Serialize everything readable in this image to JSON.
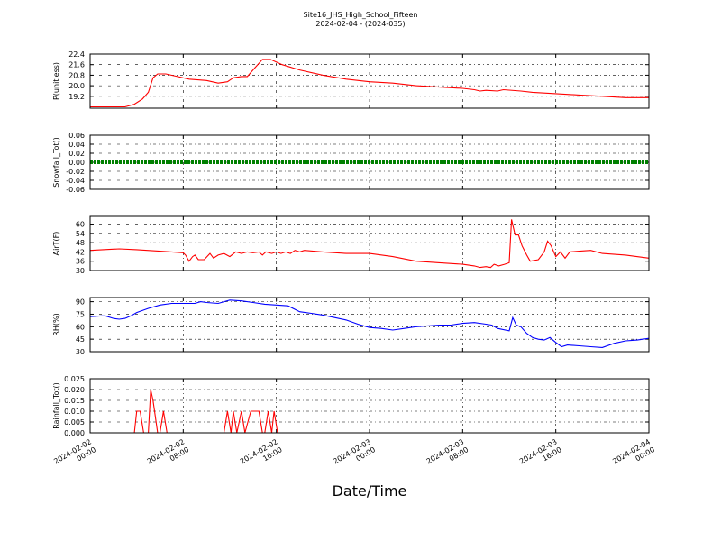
{
  "title": "Site16_JHS_High_School_Fifteen",
  "subtitle": "2024-02-04 - (2024-035)",
  "xlabel": "Date/Time",
  "x_ticks": [
    {
      "t": 0,
      "line1": "2024-02-02",
      "line2": "00:00"
    },
    {
      "t": 8,
      "line1": "2024-02-02",
      "line2": "08:00"
    },
    {
      "t": 16,
      "line1": "2024-02-02",
      "line2": "16:00"
    },
    {
      "t": 24,
      "line1": "2024-02-03",
      "line2": "00:00"
    },
    {
      "t": 32,
      "line1": "2024-02-03",
      "line2": "08:00"
    },
    {
      "t": 40,
      "line1": "2024-02-03",
      "line2": "16:00"
    },
    {
      "t": 48,
      "line1": "2024-02-04",
      "line2": "00:00"
    }
  ],
  "chart_data": [
    {
      "type": "line",
      "ylabel": "P(unitless)",
      "color": "#ff0000",
      "ylim": [
        18.3,
        22.4
      ],
      "yticks": [
        "19.2",
        "20.0",
        "20.8",
        "21.6",
        "22.4"
      ],
      "points": [
        [
          0,
          18.4
        ],
        [
          3,
          18.4
        ],
        [
          3.8,
          18.6
        ],
        [
          4.5,
          19.0
        ],
        [
          5,
          19.5
        ],
        [
          5.4,
          20.6
        ],
        [
          5.8,
          20.9
        ],
        [
          6.5,
          20.9
        ],
        [
          7.5,
          20.7
        ],
        [
          8.5,
          20.5
        ],
        [
          10,
          20.4
        ],
        [
          11,
          20.2
        ],
        [
          11.8,
          20.3
        ],
        [
          12.3,
          20.6
        ],
        [
          13,
          20.7
        ],
        [
          13.5,
          20.7
        ],
        [
          14.2,
          21.4
        ],
        [
          14.8,
          22.0
        ],
        [
          15.5,
          22.0
        ],
        [
          16.5,
          21.6
        ],
        [
          18,
          21.2
        ],
        [
          20,
          20.8
        ],
        [
          22,
          20.5
        ],
        [
          24,
          20.3
        ],
        [
          26,
          20.2
        ],
        [
          28,
          20.0
        ],
        [
          30,
          19.9
        ],
        [
          32,
          19.8
        ],
        [
          33,
          19.7
        ],
        [
          33.5,
          19.6
        ],
        [
          34,
          19.65
        ],
        [
          35,
          19.6
        ],
        [
          35.5,
          19.7
        ],
        [
          37,
          19.6
        ],
        [
          38,
          19.5
        ],
        [
          40,
          19.4
        ],
        [
          42,
          19.3
        ],
        [
          44,
          19.2
        ],
        [
          46,
          19.1
        ],
        [
          48,
          19.1
        ]
      ]
    },
    {
      "type": "line",
      "ylabel": "Snowfall_Tot()",
      "color": "#008000",
      "ylim": [
        -0.06,
        0.06
      ],
      "yticks": [
        "-0.06",
        "-0.04",
        "-0.02",
        "0.00",
        "0.02",
        "0.04",
        "0.06"
      ],
      "points": [
        [
          0,
          0
        ],
        [
          48,
          0
        ]
      ]
    },
    {
      "type": "line",
      "ylabel": "AirT(F)",
      "color": "#ff0000",
      "ylim": [
        30,
        65
      ],
      "yticks": [
        "30",
        "36",
        "42",
        "48",
        "54",
        "60"
      ],
      "points": [
        [
          0,
          43
        ],
        [
          2.5,
          44
        ],
        [
          4,
          43.5
        ],
        [
          6,
          42.5
        ],
        [
          8,
          41.5
        ],
        [
          8.2,
          40
        ],
        [
          8.5,
          36
        ],
        [
          8.8,
          39
        ],
        [
          9,
          40
        ],
        [
          9.3,
          37
        ],
        [
          9.8,
          37
        ],
        [
          10.3,
          41
        ],
        [
          10.6,
          38
        ],
        [
          11,
          40
        ],
        [
          11.5,
          41
        ],
        [
          12,
          39
        ],
        [
          12.5,
          42
        ],
        [
          13,
          41
        ],
        [
          13.5,
          42
        ],
        [
          14,
          41.5
        ],
        [
          14.5,
          42
        ],
        [
          14.8,
          40
        ],
        [
          15.1,
          42
        ],
        [
          15.6,
          41
        ],
        [
          16,
          42
        ],
        [
          16.4,
          41
        ],
        [
          16.8,
          42
        ],
        [
          17.2,
          41
        ],
        [
          17.6,
          43
        ],
        [
          18,
          42
        ],
        [
          18.4,
          43
        ],
        [
          20,
          42
        ],
        [
          22,
          41
        ],
        [
          24,
          41
        ],
        [
          26,
          39
        ],
        [
          28,
          36
        ],
        [
          30,
          35
        ],
        [
          32,
          34
        ],
        [
          33,
          33
        ],
        [
          33.5,
          32
        ],
        [
          34,
          32.5
        ],
        [
          34.4,
          32
        ],
        [
          34.7,
          34
        ],
        [
          35.1,
          33
        ],
        [
          35.6,
          34
        ],
        [
          36,
          35
        ],
        [
          36.2,
          63
        ],
        [
          36.5,
          53
        ],
        [
          36.8,
          53
        ],
        [
          37.1,
          46
        ],
        [
          37.5,
          40
        ],
        [
          37.8,
          36
        ],
        [
          38.5,
          37
        ],
        [
          39,
          42
        ],
        [
          39.3,
          49
        ],
        [
          39.6,
          46
        ],
        [
          40,
          39
        ],
        [
          40.4,
          42
        ],
        [
          40.8,
          38
        ],
        [
          41.2,
          42
        ],
        [
          42,
          42.5
        ],
        [
          43,
          43
        ],
        [
          44,
          41
        ],
        [
          46,
          40
        ],
        [
          48,
          38
        ]
      ]
    },
    {
      "type": "line",
      "ylabel": "RH(%)",
      "color": "#0000ff",
      "ylim": [
        30,
        95
      ],
      "yticks": [
        "30",
        "45",
        "60",
        "75",
        "90"
      ],
      "points": [
        [
          0,
          72
        ],
        [
          1,
          73
        ],
        [
          1.3,
          73
        ],
        [
          2,
          70
        ],
        [
          2.5,
          69
        ],
        [
          3,
          70
        ],
        [
          3.5,
          73
        ],
        [
          4,
          77
        ],
        [
          5,
          82
        ],
        [
          6,
          86
        ],
        [
          7,
          88
        ],
        [
          8,
          88
        ],
        [
          9,
          88
        ],
        [
          9.5,
          90
        ],
        [
          10,
          89
        ],
        [
          11,
          88
        ],
        [
          12,
          92
        ],
        [
          13,
          91
        ],
        [
          14,
          89
        ],
        [
          15,
          87
        ],
        [
          16,
          86
        ],
        [
          17,
          85
        ],
        [
          18,
          78
        ],
        [
          19,
          76
        ],
        [
          20,
          74
        ],
        [
          21,
          71
        ],
        [
          22,
          68
        ],
        [
          23,
          63
        ],
        [
          24,
          59
        ],
        [
          25,
          58
        ],
        [
          26,
          56
        ],
        [
          27,
          58
        ],
        [
          28,
          60
        ],
        [
          29,
          61
        ],
        [
          30,
          62
        ],
        [
          31,
          62
        ],
        [
          32,
          64
        ],
        [
          33,
          65
        ],
        [
          34,
          63
        ],
        [
          34.5,
          62
        ],
        [
          35,
          58
        ],
        [
          36,
          55
        ],
        [
          36.3,
          71
        ],
        [
          36.6,
          62
        ],
        [
          37,
          60
        ],
        [
          37.5,
          52
        ],
        [
          38,
          47
        ],
        [
          38.5,
          45
        ],
        [
          39,
          44
        ],
        [
          39.5,
          47
        ],
        [
          40,
          41
        ],
        [
          40.5,
          36
        ],
        [
          41,
          38
        ],
        [
          42,
          37
        ],
        [
          43,
          36
        ],
        [
          44,
          35
        ],
        [
          45,
          40
        ],
        [
          46,
          43
        ],
        [
          47,
          44
        ],
        [
          48,
          46
        ]
      ]
    },
    {
      "type": "line",
      "ylabel": "Rainfall_Tot()",
      "color": "#ff0000",
      "ylim": [
        0,
        0.025
      ],
      "yticks": [
        "0.000",
        "0.005",
        "0.010",
        "0.015",
        "0.020",
        "0.025"
      ],
      "points": [
        [
          0,
          0
        ],
        [
          3.8,
          0
        ],
        [
          4,
          0.01
        ],
        [
          4.3,
          0.01
        ],
        [
          4.6,
          0
        ],
        [
          5,
          0
        ],
        [
          5.2,
          0.02
        ],
        [
          5.4,
          0.015
        ],
        [
          5.8,
          0
        ],
        [
          6,
          0
        ],
        [
          6.3,
          0.01
        ],
        [
          6.6,
          0
        ],
        [
          11.5,
          0
        ],
        [
          11.8,
          0.01
        ],
        [
          12.1,
          0
        ],
        [
          12.3,
          0.01
        ],
        [
          12.6,
          0
        ],
        [
          13,
          0.01
        ],
        [
          13.3,
          0
        ],
        [
          13.8,
          0.01
        ],
        [
          14.5,
          0.01
        ],
        [
          14.8,
          0
        ],
        [
          15,
          0
        ],
        [
          15.3,
          0.01
        ],
        [
          15.6,
          0
        ],
        [
          15.8,
          0.01
        ],
        [
          16.1,
          0
        ],
        [
          48,
          0
        ]
      ]
    }
  ]
}
